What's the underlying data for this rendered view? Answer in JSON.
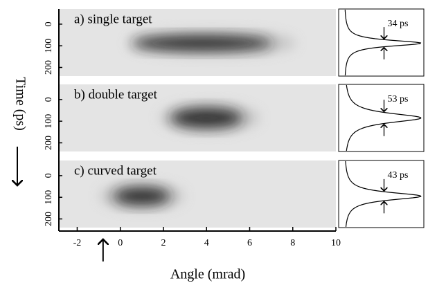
{
  "chart_data": {
    "type": "streak",
    "xlabel": "Angle (mrad)",
    "ylabel": "Time (ps)",
    "xlim": [
      -2.85,
      10
    ],
    "xticks": [
      -2,
      0,
      2,
      4,
      6,
      8,
      10
    ],
    "ylim": [
      -70,
      240
    ],
    "yticks": [
      0,
      100,
      200
    ],
    "marker_x": -0.8,
    "panels": [
      {
        "title": "a) single target",
        "values": [
          34
        ],
        "value_labels": [
          "34 ps"
        ],
        "spot_x": 3.8,
        "spot_y": 88,
        "spot_x_range": [
          1,
          7.5
        ]
      },
      {
        "title": "b) double target",
        "values": [
          53
        ],
        "value_labels": [
          "53 ps"
        ],
        "spot_x": 4,
        "spot_y": 85,
        "spot_x_range": [
          2.5,
          5.8
        ]
      },
      {
        "title": "c) curved target",
        "values": [
          43
        ],
        "value_labels": [
          "43 ps"
        ],
        "spot_x": 1,
        "spot_y": 95,
        "spot_x_range": [
          -0.3,
          2.3
        ]
      }
    ]
  }
}
